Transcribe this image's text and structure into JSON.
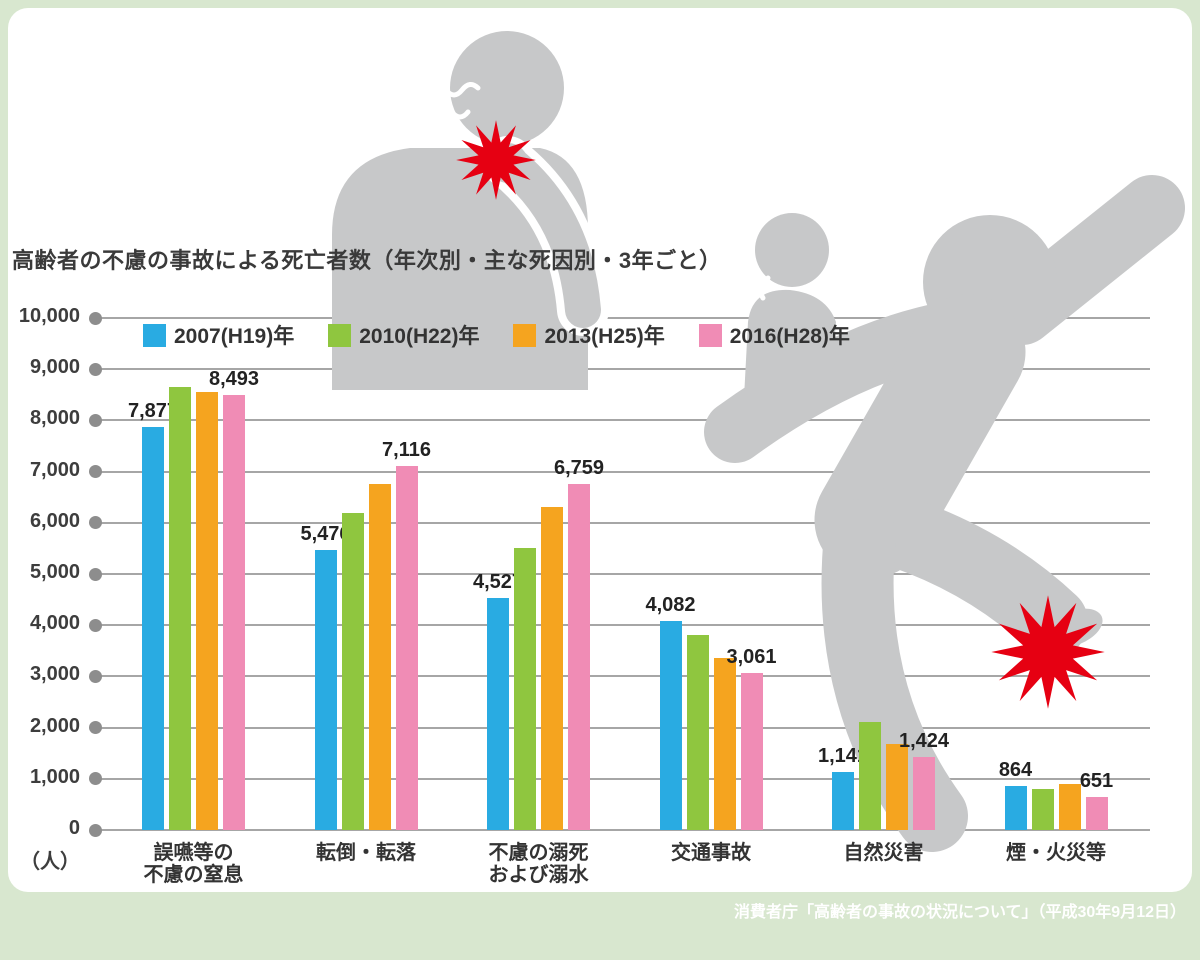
{
  "page": {
    "title": "高齢者の不慮の事故による死亡者数（年次別・主な死因別・3年ごと）",
    "unit_label": "（人）",
    "source": "消費者庁「高齢者の事故の状況について」（平成30年9月12日）",
    "colors": {
      "background_green": "#d8e7cf",
      "panel_white": "#ffffff",
      "illustration_gray": "#c7c8c9",
      "impact_red": "#e60012",
      "gridline_gray": "#a6a6a6"
    }
  },
  "chart_data": {
    "type": "bar",
    "title": "高齢者の不慮の事故による死亡者数（年次別・主な死因別・3年ごと）",
    "xlabel": "",
    "ylabel": "（人）",
    "ylim": [
      0,
      10000
    ],
    "ytick_step": 1000,
    "grid": true,
    "legend_position": "top-left",
    "yticks": [
      "10,000",
      "9,000",
      "8,000",
      "7,000",
      "6,000",
      "5,000",
      "4,000",
      "3,000",
      "2,000",
      "1,000",
      "0"
    ],
    "categories": [
      "誤嚥等の\n不慮の窒息",
      "転倒・転落",
      "不慮の溺死\nおよび溺水",
      "交通事故",
      "自然災害",
      "煙・火災等"
    ],
    "series": [
      {
        "name": "2007(H19)年",
        "color": "#29abe2",
        "values": [
          7877,
          5476,
          4527,
          4082,
          1141,
          864
        ],
        "value_labels": [
          "7,877",
          "5,476",
          "4,527",
          "4,082",
          "1,141",
          "864"
        ]
      },
      {
        "name": "2010(H22)年",
        "color": "#8fc63f",
        "values": [
          8650,
          6200,
          5500,
          3800,
          2100,
          800
        ],
        "value_labels": [
          null,
          null,
          null,
          null,
          null,
          null
        ]
      },
      {
        "name": "2013(H25)年",
        "color": "#f5a41f",
        "values": [
          8550,
          6750,
          6300,
          3350,
          1680,
          900
        ],
        "value_labels": [
          null,
          null,
          null,
          null,
          null,
          null
        ]
      },
      {
        "name": "2016(H28)年",
        "color": "#f08cb5",
        "values": [
          8493,
          7116,
          6759,
          3061,
          1424,
          651
        ],
        "value_labels": [
          "8,493",
          "7,116",
          "6,759",
          "3,061",
          "1,424",
          "651"
        ]
      }
    ]
  }
}
